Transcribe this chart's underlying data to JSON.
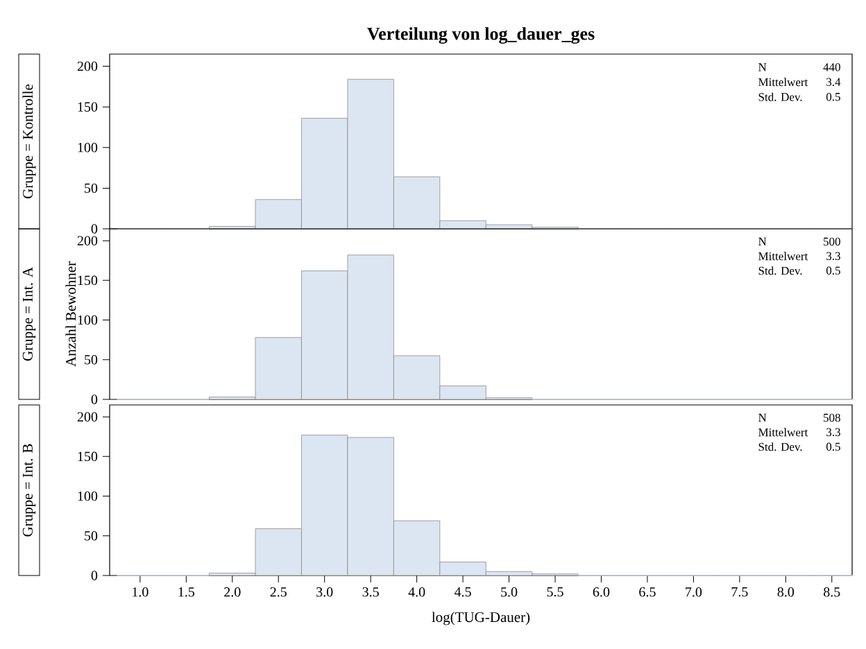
{
  "chart_data": [
    {
      "type": "histogram",
      "title": "Verteilung von log_dauer_ges",
      "subtitle": "Gruppe = Kontrolle",
      "bins": [
        0.75,
        1.25,
        1.75,
        2.25,
        2.75,
        3.25,
        3.75,
        4.25,
        4.75,
        5.25,
        5.75,
        6.25,
        6.75,
        7.25,
        7.75,
        8.25,
        8.75
      ],
      "values": [
        0,
        0,
        3,
        36,
        136,
        184,
        64,
        10,
        5,
        2,
        0,
        0,
        0,
        0,
        0,
        0
      ],
      "color": "#dce6f2",
      "xlim": [
        0.67,
        8.72
      ],
      "ylim": [
        0,
        215
      ],
      "yticks": [
        0,
        50,
        100,
        150,
        200
      ],
      "tick_labels": "y",
      "annotations": [
        "N",
        "440",
        "Mittelwert",
        "3.4",
        "Std. Dev.",
        "0.5"
      ]
    },
    {
      "type": "histogram",
      "subtitle": "Gruppe = Int. A",
      "ylabel": "Anzahl Bewohner",
      "bins": [
        0.75,
        1.25,
        1.75,
        2.25,
        2.75,
        3.25,
        3.75,
        4.25,
        4.75,
        5.25,
        5.75,
        6.25,
        6.75,
        7.25,
        7.75,
        8.25,
        8.75
      ],
      "values": [
        0,
        0,
        3,
        78,
        162,
        182,
        55,
        17,
        2,
        0,
        0,
        0,
        0,
        0,
        0,
        0
      ],
      "color": "#dce6f2",
      "xlim": [
        0.67,
        8.72
      ],
      "ylim": [
        0,
        215
      ],
      "yticks": [
        0,
        50,
        100,
        150,
        200
      ],
      "tick_labels": "y",
      "annotations": [
        "N",
        "500",
        "Mittelwert",
        "3.3",
        "Std. Dev.",
        "0.5"
      ]
    },
    {
      "type": "histogram",
      "subtitle": "Gruppe = Int. B",
      "xlabel": "log(TUG-Dauer)",
      "bins": [
        0.75,
        1.25,
        1.75,
        2.25,
        2.75,
        3.25,
        3.75,
        4.25,
        4.75,
        5.25,
        5.75,
        6.25,
        6.75,
        7.25,
        7.75,
        8.25,
        8.75
      ],
      "values": [
        0,
        0,
        3,
        59,
        177,
        174,
        69,
        17,
        5,
        2,
        0,
        0,
        0,
        0,
        0,
        0
      ],
      "color": "#dce6f2",
      "xlim": [
        0.67,
        8.72
      ],
      "ylim": [
        0,
        215
      ],
      "xticks": [
        {
          "value": 1.0,
          "label": "1.0"
        },
        {
          "value": 1.5,
          "label": "1.5"
        },
        {
          "value": 2.0,
          "label": "2.0"
        },
        {
          "value": 2.5,
          "label": "2.5"
        },
        {
          "value": 3.0,
          "label": "3.0"
        },
        {
          "value": 3.5,
          "label": "3.5"
        },
        {
          "value": 4.0,
          "label": "4.0"
        },
        {
          "value": 4.5,
          "label": "4.5"
        },
        {
          "value": 5.0,
          "label": "5.0"
        },
        {
          "value": 5.5,
          "label": "5.5"
        },
        {
          "value": 6.0,
          "label": "6.0"
        },
        {
          "value": 6.5,
          "label": "6.5"
        },
        {
          "value": 7.0,
          "label": "7.0"
        },
        {
          "value": 7.5,
          "label": "7.5"
        },
        {
          "value": 8.0,
          "label": "8.0"
        },
        {
          "value": 8.5,
          "label": "8.5"
        }
      ],
      "yticks": [
        0,
        50,
        100,
        150,
        200
      ],
      "annotations": [
        "N",
        "508",
        "Mittelwert",
        "3.3",
        "Std. Dev.",
        "0.5"
      ]
    }
  ]
}
